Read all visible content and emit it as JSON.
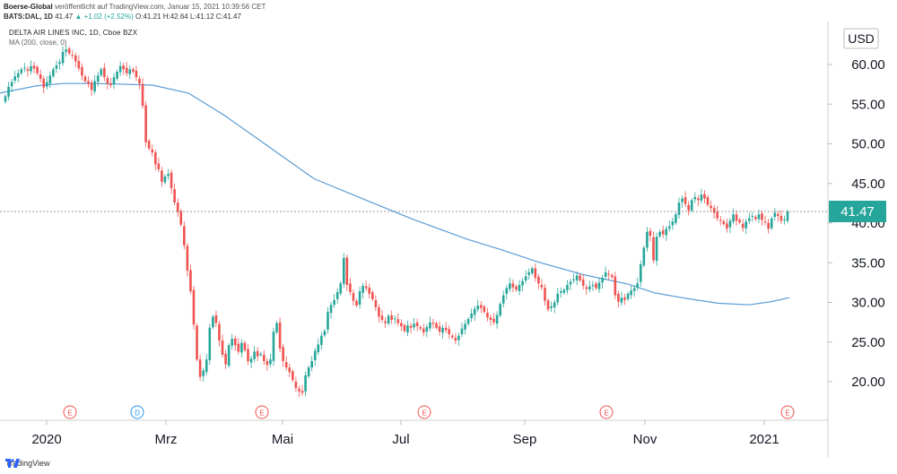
{
  "header": {
    "publisher": "Boerse-Global",
    "published_text": "veröffentlicht auf TradingView.com, Januar 15, 2021 10:39:56 CET",
    "ticker": "BATS:DAL, 1D",
    "last": "41.47",
    "change": "+1.02 (+2.52%)",
    "open": "O:41.21",
    "high": "H:42.64",
    "low": "L:41.12",
    "close": "C:41.47"
  },
  "symbol_line": "DELTA AIR LINES INC, 1D, Cboe BZX",
  "indicator_line": "MA (200, close, 0)",
  "currency": "USD",
  "last_price_label": "41.47",
  "footer": {
    "brand": "TradingView"
  },
  "colors": {
    "up": "#26a69a",
    "down": "#ef5350",
    "ma": "#5b9bd5",
    "price_tag": "#26a69a",
    "event": "#ef5350",
    "dividend": "#2196f3"
  },
  "chart_data": {
    "type": "candlestick",
    "y_ticks": [
      "20.00",
      "25.00",
      "30.00",
      "35.00",
      "40.00",
      "45.00",
      "50.00",
      "55.00",
      "60.00"
    ],
    "ylim": [
      15,
      65
    ],
    "x_ticks": [
      "2020",
      "Mrz",
      "Mai",
      "Jul",
      "Sep",
      "Nov",
      "2021"
    ],
    "events": [
      {
        "label": "E",
        "kind": "earnings",
        "near": "Jan"
      },
      {
        "label": "D",
        "kind": "dividend",
        "near": "Feb"
      },
      {
        "label": "E",
        "kind": "earnings",
        "near": "Apr"
      },
      {
        "label": "E",
        "kind": "earnings",
        "near": "Jul"
      },
      {
        "label": "E",
        "kind": "earnings",
        "near": "Okt"
      },
      {
        "label": "E",
        "kind": "earnings",
        "near": "Jan 2021"
      }
    ],
    "closes": [
      56.0,
      57.2,
      57.8,
      58.5,
      58.9,
      59.4,
      59.6,
      59.2,
      59.8,
      59.5,
      58.9,
      58.2,
      57.1,
      57.8,
      58.6,
      59.4,
      59.9,
      60.3,
      61.6,
      61.9,
      61.4,
      61.2,
      60.4,
      59.5,
      58.6,
      57.9,
      57.6,
      56.8,
      57.9,
      58.6,
      59.4,
      58.4,
      57.6,
      57.4,
      58.4,
      59.1,
      59.8,
      59.4,
      58.9,
      59.4,
      59.1,
      58.4,
      57.6,
      54.8,
      50.2,
      49.4,
      48.9,
      47.4,
      46.8,
      45.2,
      45.9,
      46.2,
      44.4,
      42.6,
      41.4,
      39.8,
      37.2,
      34.0,
      31.4,
      27.2,
      22.8,
      20.6,
      21.4,
      22.8,
      26.8,
      28.2,
      27.4,
      25.2,
      23.4,
      22.2,
      24.6,
      25.4,
      24.6,
      23.8,
      24.9,
      24.0,
      22.6,
      22.9,
      23.8,
      23.2,
      23.5,
      22.6,
      22.1,
      22.8,
      26.3,
      27.4,
      24.2,
      22.6,
      21.8,
      21.2,
      20.2,
      19.2,
      18.8,
      18.6,
      20.8,
      21.8,
      22.6,
      23.9,
      24.7,
      25.8,
      26.4,
      28.8,
      29.7,
      30.3,
      31.3,
      32.4,
      35.6,
      32.2,
      31.3,
      30.2,
      29.6,
      31.4,
      32.1,
      31.8,
      31.1,
      30.4,
      29.4,
      28.2,
      27.8,
      27.4,
      28.3,
      27.8,
      28.0,
      27.4,
      27.0,
      26.4,
      27.1,
      26.8,
      27.3,
      27.0,
      26.7,
      26.2,
      26.9,
      27.5,
      27.3,
      26.8,
      26.3,
      26.8,
      26.5,
      26.0,
      25.6,
      25.2,
      25.8,
      26.7,
      27.3,
      27.9,
      28.6,
      29.2,
      29.6,
      29.3,
      28.8,
      28.1,
      27.8,
      27.5,
      28.4,
      29.8,
      30.9,
      31.8,
      32.4,
      31.9,
      31.6,
      32.2,
      32.7,
      33.3,
      33.8,
      34.3,
      33.1,
      32.4,
      31.9,
      30.2,
      29.1,
      29.5,
      30.0,
      31.1,
      31.4,
      31.6,
      32.2,
      32.6,
      32.9,
      33.4,
      32.8,
      32.1,
      31.7,
      32.0,
      32.2,
      31.8,
      32.5,
      33.1,
      33.8,
      33.5,
      33.2,
      30.9,
      30.1,
      30.6,
      30.3,
      31.1,
      31.5,
      31.8,
      32.4,
      34.8,
      36.9,
      38.9,
      38.4,
      35.3,
      38.3,
      38.9,
      38.6,
      39.3,
      39.6,
      40.2,
      41.1,
      42.6,
      43.1,
      42.4,
      41.6,
      42.9,
      43.3,
      42.9,
      43.6,
      43.1,
      42.3,
      41.9,
      41.3,
      40.6,
      40.3,
      39.9,
      39.3,
      40.3,
      41.1,
      40.3,
      40.1,
      39.4,
      40.2,
      40.6,
      40.9,
      40.5,
      41.1,
      40.4,
      40.1,
      39.3,
      40.6,
      41.3,
      40.9,
      40.3,
      40.45,
      41.47
    ],
    "ma200": [
      [
        0,
        56.4
      ],
      [
        40,
        57.3
      ],
      [
        70,
        57.6
      ],
      [
        110,
        57.6
      ],
      [
        170,
        57.4
      ],
      [
        210,
        56.4
      ],
      [
        250,
        53.6
      ],
      [
        300,
        49.6
      ],
      [
        350,
        45.6
      ],
      [
        410,
        42.8
      ],
      [
        460,
        40.5
      ],
      [
        520,
        38.0
      ],
      [
        560,
        36.6
      ],
      [
        600,
        35.1
      ],
      [
        650,
        33.5
      ],
      [
        700,
        32.3
      ],
      [
        730,
        31.2
      ],
      [
        760,
        30.6
      ],
      [
        800,
        29.9
      ],
      [
        835,
        29.7
      ],
      [
        860,
        30.1
      ],
      [
        880,
        30.6
      ]
    ]
  }
}
